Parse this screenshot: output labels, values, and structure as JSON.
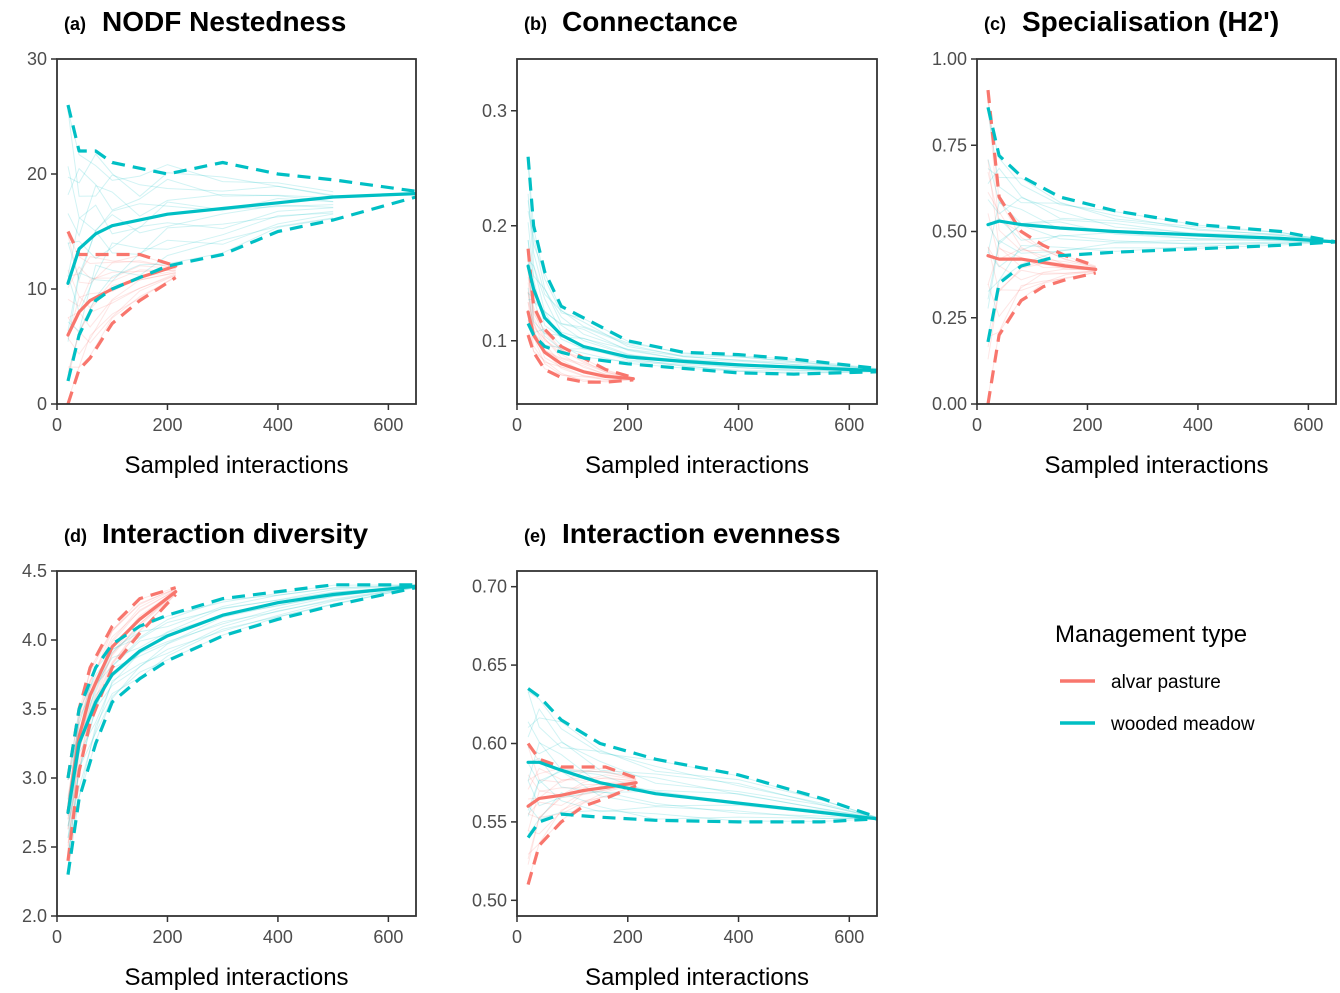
{
  "colors": {
    "alvar pasture": "#F8766D",
    "wooded meadow": "#00BFC4"
  },
  "legend": {
    "title": "Management type",
    "items": [
      {
        "label": "alvar pasture",
        "color": "#F8766D"
      },
      {
        "label": "wooded meadow",
        "color": "#00BFC4"
      }
    ]
  },
  "chart_data": [
    {
      "type": "line",
      "tag": "(a)",
      "title": "NODF Nestedness",
      "xlabel": "Sampled interactions",
      "ylabel": "",
      "xlim": [
        0,
        650
      ],
      "ylim": [
        0,
        30
      ],
      "xticks": [
        0,
        200,
        400,
        600
      ],
      "yticks": [
        0,
        10,
        20,
        30
      ],
      "series": [
        {
          "name": "alvar pasture",
          "mean": {
            "x": [
              20,
              40,
              60,
              100,
              150,
              215
            ],
            "y": [
              6,
              8,
              9,
              10,
              11,
              12
            ]
          },
          "lower": {
            "x": [
              20,
              40,
              60,
              100,
              150,
              215
            ],
            "y": [
              0,
              3,
              4,
              7,
              9,
              11
            ]
          },
          "upper": {
            "x": [
              20,
              40,
              60,
              100,
              150,
              215
            ],
            "y": [
              15,
              13,
              13,
              13,
              13,
              12
            ]
          }
        },
        {
          "name": "wooded meadow",
          "mean": {
            "x": [
              20,
              40,
              70,
              100,
              200,
              300,
              400,
              500,
              650
            ],
            "y": [
              10.5,
              13.5,
              14.8,
              15.5,
              16.5,
              17,
              17.5,
              18,
              18.3
            ]
          },
          "lower": {
            "x": [
              20,
              40,
              70,
              100,
              150,
              200,
              300,
              400,
              500,
              650
            ],
            "y": [
              2,
              6,
              9,
              10,
              11,
              12,
              13,
              15,
              16,
              18
            ]
          },
          "upper": {
            "x": [
              20,
              40,
              70,
              100,
              200,
              300,
              400,
              500,
              650
            ],
            "y": [
              26,
              22,
              22,
              21,
              20,
              21,
              20,
              19.5,
              18.5
            ]
          }
        }
      ]
    },
    {
      "type": "line",
      "tag": "(b)",
      "title": "Connectance",
      "xlabel": "Sampled interactions",
      "ylabel": "",
      "xlim": [
        0,
        650
      ],
      "ylim": [
        0.045,
        0.345
      ],
      "xticks": [
        0,
        200,
        400,
        600
      ],
      "yticks": [
        0.1,
        0.2,
        0.3
      ],
      "series": [
        {
          "name": "alvar pasture",
          "mean": {
            "x": [
              20,
              30,
              50,
              80,
              120,
              160,
              210
            ],
            "y": [
              0.125,
              0.105,
              0.09,
              0.08,
              0.073,
              0.069,
              0.067
            ]
          },
          "lower": {
            "x": [
              20,
              30,
              50,
              80,
              120,
              160,
              210
            ],
            "y": [
              0.105,
              0.09,
              0.075,
              0.068,
              0.064,
              0.064,
              0.066
            ]
          },
          "upper": {
            "x": [
              20,
              30,
              50,
              80,
              120,
              160,
              210
            ],
            "y": [
              0.18,
              0.13,
              0.11,
              0.095,
              0.085,
              0.075,
              0.068
            ]
          }
        },
        {
          "name": "wooded meadow",
          "mean": {
            "x": [
              20,
              30,
              50,
              80,
              120,
              200,
              300,
              400,
              500,
              650
            ],
            "y": [
              0.165,
              0.145,
              0.12,
              0.105,
              0.095,
              0.086,
              0.082,
              0.079,
              0.077,
              0.074
            ]
          },
          "lower": {
            "x": [
              20,
              30,
              50,
              80,
              120,
              200,
              300,
              400,
              500,
              650
            ],
            "y": [
              0.115,
              0.105,
              0.095,
              0.09,
              0.085,
              0.08,
              0.076,
              0.072,
              0.071,
              0.073
            ]
          },
          "upper": {
            "x": [
              20,
              30,
              50,
              80,
              120,
              200,
              300,
              400,
              500,
              650
            ],
            "y": [
              0.26,
              0.2,
              0.16,
              0.13,
              0.12,
              0.1,
              0.09,
              0.088,
              0.084,
              0.076
            ]
          }
        }
      ]
    },
    {
      "type": "line",
      "tag": "(c)",
      "title": "Specialisation (H2')",
      "xlabel": "Sampled interactions",
      "ylabel": "",
      "xlim": [
        0,
        650
      ],
      "ylim": [
        0,
        1
      ],
      "xticks": [
        0,
        200,
        400,
        600
      ],
      "yticks": [
        0.0,
        0.25,
        0.5,
        0.75,
        1.0
      ],
      "series": [
        {
          "name": "alvar pasture",
          "mean": {
            "x": [
              20,
              40,
              80,
              120,
              160,
              215
            ],
            "y": [
              0.43,
              0.42,
              0.42,
              0.41,
              0.4,
              0.39
            ]
          },
          "lower": {
            "x": [
              20,
              40,
              80,
              120,
              160,
              215
            ],
            "y": [
              0.0,
              0.2,
              0.3,
              0.34,
              0.36,
              0.38
            ]
          },
          "upper": {
            "x": [
              20,
              40,
              80,
              120,
              160,
              215
            ],
            "y": [
              0.91,
              0.6,
              0.5,
              0.46,
              0.43,
              0.4
            ]
          }
        },
        {
          "name": "wooded meadow",
          "mean": {
            "x": [
              20,
              40,
              80,
              150,
              250,
              400,
              550,
              650
            ],
            "y": [
              0.52,
              0.53,
              0.52,
              0.51,
              0.5,
              0.49,
              0.48,
              0.47
            ]
          },
          "lower": {
            "x": [
              20,
              40,
              80,
              150,
              250,
              400,
              550,
              650
            ],
            "y": [
              0.18,
              0.35,
              0.4,
              0.43,
              0.44,
              0.45,
              0.46,
              0.47
            ]
          },
          "upper": {
            "x": [
              20,
              40,
              80,
              150,
              250,
              400,
              550,
              650
            ],
            "y": [
              0.86,
              0.72,
              0.66,
              0.6,
              0.56,
              0.52,
              0.5,
              0.47
            ]
          }
        }
      ]
    },
    {
      "type": "line",
      "tag": "(d)",
      "title": "Interaction diversity",
      "xlabel": "Sampled interactions",
      "ylabel": "",
      "xlim": [
        0,
        650
      ],
      "ylim": [
        2,
        4.5
      ],
      "xticks": [
        0,
        200,
        400,
        600
      ],
      "yticks": [
        2.0,
        2.5,
        3.0,
        3.5,
        4.0,
        4.5
      ],
      "series": [
        {
          "name": "alvar pasture",
          "mean": {
            "x": [
              20,
              40,
              60,
              100,
              150,
              215
            ],
            "y": [
              2.75,
              3.3,
              3.6,
              3.95,
              4.15,
              4.35
            ]
          },
          "lower": {
            "x": [
              20,
              40,
              60,
              100,
              150,
              215
            ],
            "y": [
              2.4,
              3.05,
              3.4,
              3.8,
              4.05,
              4.33
            ]
          },
          "upper": {
            "x": [
              20,
              40,
              60,
              100,
              150,
              215
            ],
            "y": [
              3.0,
              3.5,
              3.8,
              4.1,
              4.3,
              4.38
            ]
          }
        },
        {
          "name": "wooded meadow",
          "mean": {
            "x": [
              20,
              40,
              70,
              100,
              150,
              200,
              300,
              400,
              500,
              650
            ],
            "y": [
              2.75,
              3.25,
              3.55,
              3.75,
              3.92,
              4.03,
              4.18,
              4.27,
              4.33,
              4.39
            ]
          },
          "lower": {
            "x": [
              20,
              40,
              70,
              100,
              150,
              200,
              300,
              400,
              500,
              650
            ],
            "y": [
              2.3,
              2.85,
              3.25,
              3.55,
              3.72,
              3.85,
              4.03,
              4.15,
              4.25,
              4.38
            ]
          },
          "upper": {
            "x": [
              20,
              40,
              70,
              100,
              150,
              200,
              300,
              400,
              500,
              650
            ],
            "y": [
              3.0,
              3.5,
              3.8,
              3.97,
              4.1,
              4.18,
              4.3,
              4.35,
              4.4,
              4.4
            ]
          }
        }
      ]
    },
    {
      "type": "line",
      "tag": "(e)",
      "title": "Interaction evenness",
      "xlabel": "Sampled interactions",
      "ylabel": "",
      "xlim": [
        0,
        650
      ],
      "ylim": [
        0.49,
        0.71
      ],
      "xticks": [
        0,
        200,
        400,
        600
      ],
      "yticks": [
        0.5,
        0.55,
        0.6,
        0.65,
        0.7
      ],
      "series": [
        {
          "name": "alvar pasture",
          "mean": {
            "x": [
              20,
              40,
              80,
              120,
              160,
              215
            ],
            "y": [
              0.56,
              0.565,
              0.567,
              0.57,
              0.572,
              0.575
            ]
          },
          "lower": {
            "x": [
              20,
              40,
              80,
              120,
              160,
              215
            ],
            "y": [
              0.51,
              0.535,
              0.55,
              0.56,
              0.565,
              0.573
            ]
          },
          "upper": {
            "x": [
              20,
              40,
              80,
              120,
              160,
              215
            ],
            "y": [
              0.6,
              0.59,
              0.585,
              0.585,
              0.585,
              0.578
            ]
          }
        },
        {
          "name": "wooded meadow",
          "mean": {
            "x": [
              20,
              40,
              80,
              150,
              250,
              400,
              550,
              650
            ],
            "y": [
              0.588,
              0.588,
              0.583,
              0.575,
              0.568,
              0.562,
              0.556,
              0.552
            ]
          },
          "lower": {
            "x": [
              20,
              40,
              80,
              150,
              250,
              400,
              550,
              650
            ],
            "y": [
              0.54,
              0.55,
              0.555,
              0.553,
              0.551,
              0.55,
              0.55,
              0.552
            ]
          },
          "upper": {
            "x": [
              20,
              40,
              80,
              150,
              250,
              400,
              550,
              650
            ],
            "y": [
              0.635,
              0.63,
              0.615,
              0.6,
              0.59,
              0.58,
              0.565,
              0.553
            ]
          }
        }
      ]
    }
  ]
}
